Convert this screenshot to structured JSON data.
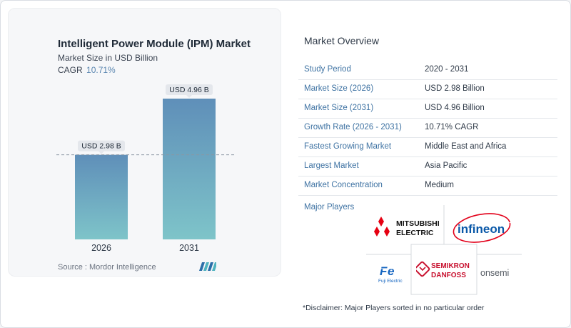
{
  "chart_data": {
    "type": "bar",
    "title": "Intelligent Power Module (IPM) Market",
    "subtitle": "Market Size in USD Billion",
    "cagr_label": "CAGR",
    "cagr_value": "10.71%",
    "categories": [
      "2026",
      "2031"
    ],
    "values": [
      2.98,
      4.96
    ],
    "data_labels": [
      "USD 2.98 B",
      "USD 4.96 B"
    ],
    "ylim": [
      0,
      4.96
    ],
    "reference_line": 2.98,
    "grid": false,
    "colors": {
      "bar_top": "#5f8fb9",
      "bar_bottom": "#7ec4c9",
      "label_bg": "#e4e7ec",
      "ref_line": "#8a96a3"
    }
  },
  "source": "Source :  Mordor Intelligence",
  "overview": {
    "title": "Market Overview",
    "rows": [
      {
        "label": "Study Period",
        "value": "2020 - 2031"
      },
      {
        "label": "Market Size (2026)",
        "value": "USD 2.98 Billion"
      },
      {
        "label": "Market Size (2031)",
        "value": "USD 4.96 Billion"
      },
      {
        "label": "Growth Rate (2026 - 2031)",
        "value": "10.71% CAGR"
      },
      {
        "label": "Fastest Growing Market",
        "value": "Middle East and Africa"
      },
      {
        "label": "Largest Market",
        "value": "Asia Pacific"
      },
      {
        "label": "Market Concentration",
        "value": "Medium"
      }
    ]
  },
  "major_players": {
    "title": "Major Players",
    "logos": [
      {
        "name": "Mitsubishi Electric",
        "text": [
          "MITSUBISHI",
          "ELECTRIC"
        ],
        "color": "#e60012"
      },
      {
        "name": "Infineon",
        "text": "infineon",
        "color": "#0a58a8"
      },
      {
        "name": "Fuji Electric",
        "text": "Fuji Electric",
        "color": "#1565c0"
      },
      {
        "name": "Semikron Danfoss",
        "text": [
          "SEMIKRON",
          "DANFOSS"
        ],
        "color": "#c8102e"
      },
      {
        "name": "onsemi",
        "text": "onsemi",
        "color": "#555b63"
      }
    ]
  },
  "disclaimer": "*Disclaimer: Major Players sorted in no particular order"
}
